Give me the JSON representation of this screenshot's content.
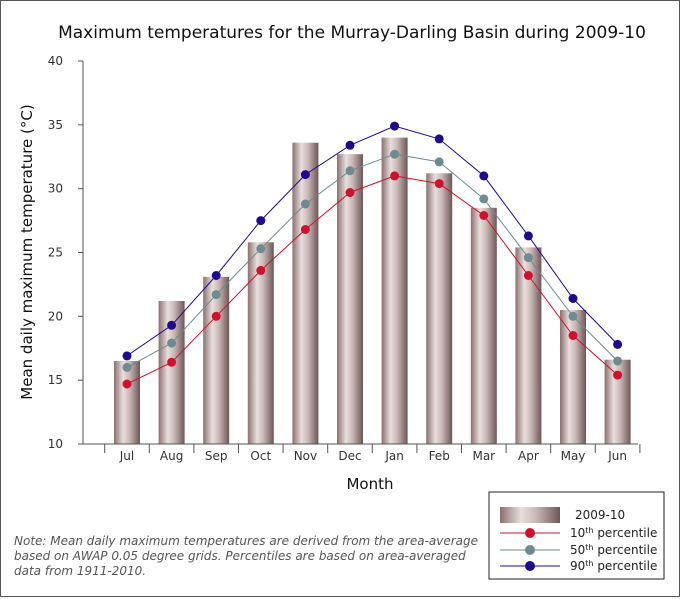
{
  "chart_data": {
    "type": "bar",
    "title": "Maximum temperatures for the Murray-Darling Basin during 2009-10",
    "xlabel": "Month",
    "ylabel": "Mean daily maximum temperature (°C)",
    "ylim": [
      10,
      40
    ],
    "yticks": [
      10,
      15,
      20,
      25,
      30,
      35,
      40
    ],
    "categories": [
      "Jul",
      "Aug",
      "Sep",
      "Oct",
      "Nov",
      "Dec",
      "Jan",
      "Feb",
      "Mar",
      "Apr",
      "May",
      "Jun"
    ],
    "bars": {
      "name": "2009-10",
      "values": [
        16.5,
        21.2,
        23.1,
        25.8,
        33.6,
        32.7,
        34.0,
        31.2,
        28.5,
        25.4,
        20.5,
        16.6
      ]
    },
    "series": [
      {
        "name": "10th percentile",
        "color": "#d0102c",
        "values": [
          14.7,
          16.4,
          20.0,
          23.6,
          26.8,
          29.7,
          31.0,
          30.4,
          27.9,
          23.2,
          18.5,
          15.4
        ]
      },
      {
        "name": "50th percentile",
        "color": "#6e8b91",
        "values": [
          16.0,
          17.9,
          21.7,
          25.3,
          28.8,
          31.4,
          32.7,
          32.1,
          29.2,
          24.6,
          20.0,
          16.5
        ]
      },
      {
        "name": "90th percentile",
        "color": "#1e0a8c",
        "values": [
          16.9,
          19.3,
          23.2,
          27.5,
          31.1,
          33.4,
          34.9,
          33.9,
          31.0,
          26.3,
          21.4,
          17.8
        ]
      }
    ],
    "legend": {
      "position": "bottom-right",
      "entries": [
        {
          "label": "2009-10"
        },
        {
          "label_main": "10",
          "label_sup": "th",
          "label_rest": " percentile"
        },
        {
          "label_main": "50",
          "label_sup": "th",
          "label_rest": " percentile"
        },
        {
          "label_main": "90",
          "label_sup": "th",
          "label_rest": " percentile"
        }
      ]
    },
    "grid": false
  },
  "note": "Note: Mean daily maximum temperatures are derived from the area-average based on AWAP 0.05 degree grids. Percentiles are based on area-averaged data from 1911-2010."
}
